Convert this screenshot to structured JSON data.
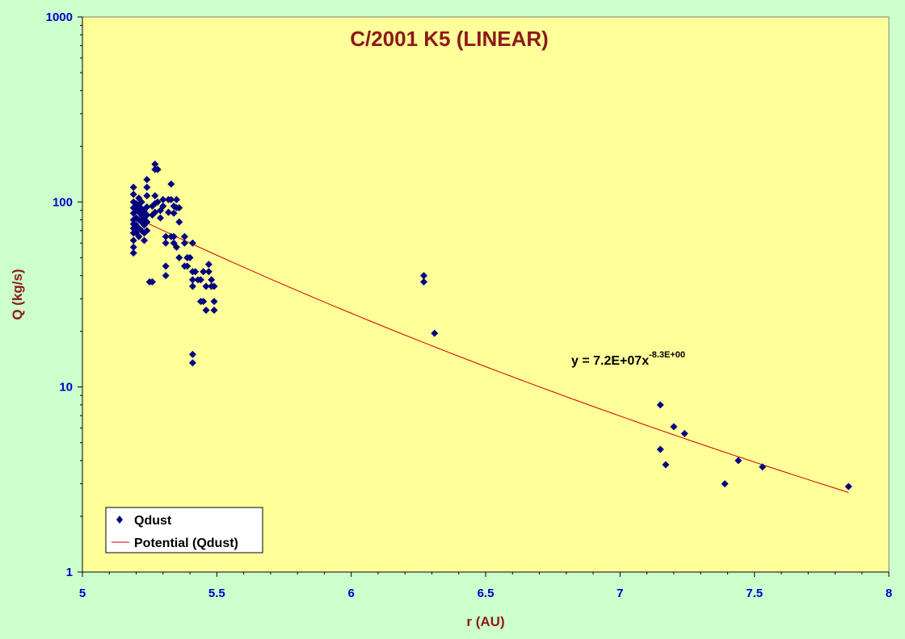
{
  "chart_data": {
    "type": "scatter",
    "title": "C/2001 K5 (LINEAR)",
    "xlabel": "r (AU)",
    "ylabel": "Q (kg/s)",
    "xlim": [
      5,
      8
    ],
    "ylim": [
      1,
      1000
    ],
    "y_scale": "log",
    "x_ticks": [
      "5",
      "5.5",
      "6",
      "6.5",
      "7",
      "7.5",
      "8"
    ],
    "y_ticks": [
      "1",
      "10",
      "100",
      "1000"
    ],
    "grid": false,
    "legend_position": "bottom-left",
    "legend": [
      {
        "label": "Qdust",
        "kind": "marker",
        "color": "#000080"
      },
      {
        "label": "Potential (Qdust)",
        "kind": "line",
        "color": "#cc0000"
      }
    ],
    "trendline": {
      "name": "Potential (Qdust)",
      "type": "power",
      "a": 72000000,
      "b": -8.3,
      "x_range": [
        5.2,
        7.85
      ],
      "equation_text": "y = 7.2E+07x",
      "equation_exponent": "-8.3E+00"
    },
    "series": [
      {
        "name": "Qdust",
        "color": "#000080",
        "points": [
          [
            5.19,
            120
          ],
          [
            5.19,
            110
          ],
          [
            5.19,
            100
          ],
          [
            5.19,
            93
          ],
          [
            5.19,
            87
          ],
          [
            5.19,
            80
          ],
          [
            5.19,
            76
          ],
          [
            5.19,
            72
          ],
          [
            5.19,
            68
          ],
          [
            5.19,
            62
          ],
          [
            5.19,
            57
          ],
          [
            5.19,
            53
          ],
          [
            5.2,
            98
          ],
          [
            5.2,
            90
          ],
          [
            5.2,
            82
          ],
          [
            5.2,
            75
          ],
          [
            5.2,
            68
          ],
          [
            5.21,
            105
          ],
          [
            5.21,
            95
          ],
          [
            5.21,
            88
          ],
          [
            5.21,
            80
          ],
          [
            5.21,
            72
          ],
          [
            5.21,
            65
          ],
          [
            5.22,
            100
          ],
          [
            5.22,
            92
          ],
          [
            5.22,
            85
          ],
          [
            5.22,
            78
          ],
          [
            5.22,
            70
          ],
          [
            5.23,
            90
          ],
          [
            5.23,
            82
          ],
          [
            5.23,
            75
          ],
          [
            5.23,
            68
          ],
          [
            5.23,
            62
          ],
          [
            5.24,
            132
          ],
          [
            5.24,
            120
          ],
          [
            5.24,
            108
          ],
          [
            5.24,
            94
          ],
          [
            5.24,
            85
          ],
          [
            5.24,
            78
          ],
          [
            5.24,
            70
          ],
          [
            5.25,
            37
          ],
          [
            5.26,
            37
          ],
          [
            5.26,
            95
          ],
          [
            5.26,
            85
          ],
          [
            5.27,
            160
          ],
          [
            5.27,
            150
          ],
          [
            5.27,
            108
          ],
          [
            5.27,
            98
          ],
          [
            5.27,
            88
          ],
          [
            5.28,
            150
          ],
          [
            5.28,
            100
          ],
          [
            5.29,
            90
          ],
          [
            5.29,
            82
          ],
          [
            5.3,
            103
          ],
          [
            5.3,
            95
          ],
          [
            5.31,
            45
          ],
          [
            5.31,
            40
          ],
          [
            5.31,
            65
          ],
          [
            5.31,
            60
          ],
          [
            5.32,
            103
          ],
          [
            5.32,
            88
          ],
          [
            5.33,
            125
          ],
          [
            5.33,
            103
          ],
          [
            5.33,
            65
          ],
          [
            5.34,
            95
          ],
          [
            5.34,
            87
          ],
          [
            5.34,
            65
          ],
          [
            5.34,
            60
          ],
          [
            5.35,
            103
          ],
          [
            5.35,
            93
          ],
          [
            5.35,
            57
          ],
          [
            5.36,
            93
          ],
          [
            5.36,
            78
          ],
          [
            5.36,
            50
          ],
          [
            5.38,
            65
          ],
          [
            5.38,
            60
          ],
          [
            5.38,
            45
          ],
          [
            5.39,
            45
          ],
          [
            5.39,
            50
          ],
          [
            5.4,
            50
          ],
          [
            5.41,
            60
          ],
          [
            5.41,
            42
          ],
          [
            5.41,
            38
          ],
          [
            5.41,
            35
          ],
          [
            5.41,
            15
          ],
          [
            5.41,
            13.5
          ],
          [
            5.42,
            42
          ],
          [
            5.43,
            38
          ],
          [
            5.44,
            38
          ],
          [
            5.44,
            29
          ],
          [
            5.45,
            42
          ],
          [
            5.45,
            29
          ],
          [
            5.46,
            35
          ],
          [
            5.46,
            26
          ],
          [
            5.47,
            46
          ],
          [
            5.47,
            42
          ],
          [
            5.48,
            38
          ],
          [
            5.48,
            35
          ],
          [
            5.49,
            29
          ],
          [
            5.49,
            26
          ],
          [
            5.49,
            35
          ],
          [
            6.27,
            40
          ],
          [
            6.27,
            37
          ],
          [
            6.31,
            19.5
          ],
          [
            7.15,
            8
          ],
          [
            7.15,
            4.6
          ],
          [
            7.17,
            3.8
          ],
          [
            7.2,
            6.1
          ],
          [
            7.24,
            5.6
          ],
          [
            7.39,
            3
          ],
          [
            7.44,
            4
          ],
          [
            7.53,
            3.7
          ],
          [
            7.85,
            2.9
          ]
        ]
      }
    ]
  }
}
